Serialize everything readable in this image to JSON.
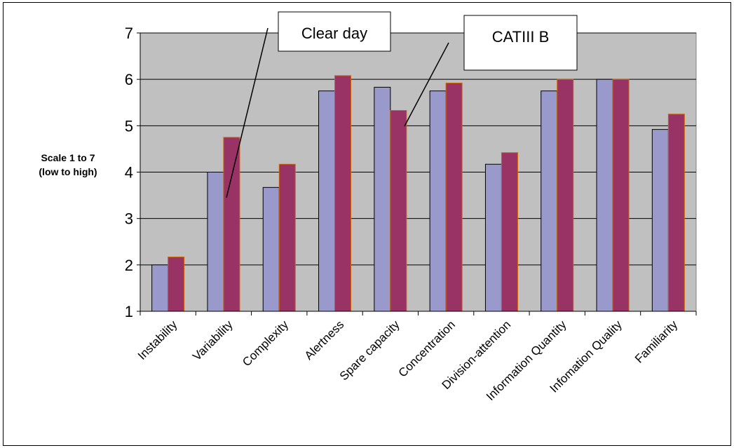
{
  "chart_data": {
    "type": "bar",
    "categories": [
      "Instability",
      "Variability",
      "Complexity",
      "Alertness",
      "Spare capacity",
      "Concentration",
      "Division-attention",
      "Information Quantity",
      "Infomation Quality",
      "Familiarity"
    ],
    "series": [
      {
        "name": "Clear day",
        "values": [
          2.0,
          4.0,
          3.67,
          5.75,
          5.83,
          5.75,
          4.17,
          5.75,
          6.0,
          4.92
        ]
      },
      {
        "name": "CATIII B",
        "values": [
          2.17,
          4.75,
          4.17,
          6.08,
          5.33,
          5.92,
          4.42,
          6.0,
          6.0,
          5.25
        ]
      }
    ],
    "ylabel": [
      "Scale 1 to 7",
      "(low to high)"
    ],
    "ylim": [
      1,
      7
    ],
    "yticks": [
      "1",
      "2",
      "3",
      "4",
      "5",
      "6",
      "7"
    ],
    "grid": true,
    "legend": "callout labels",
    "colors": {
      "plot_background": "#c0c0c0",
      "series1_fill": "#9999cc",
      "series2_fill": "#993366",
      "series2_edge": "#cc6600"
    }
  }
}
